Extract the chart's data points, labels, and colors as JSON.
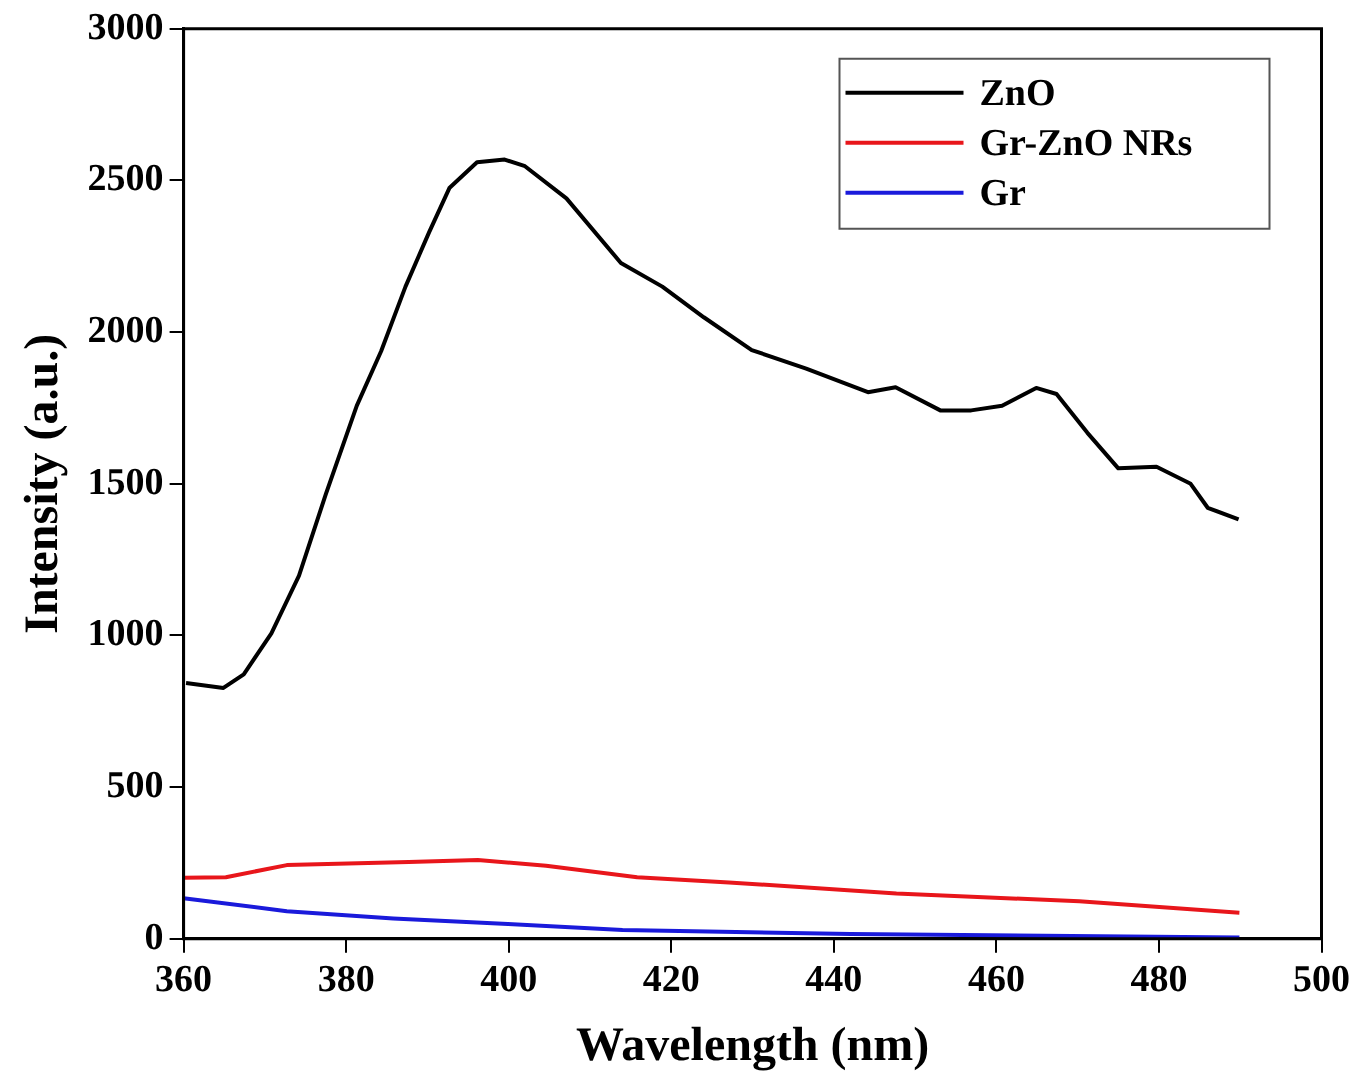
{
  "chart_data": {
    "type": "line",
    "xlabel": "Wavelength (nm)",
    "ylabel": "Intensity (a.u.)",
    "xlim": [
      360,
      500
    ],
    "xticks": [
      360,
      380,
      400,
      420,
      440,
      460,
      480,
      500
    ],
    "ylim": [
      0,
      3000
    ],
    "yticks": [
      0,
      500,
      1000,
      1500,
      2000,
      2500,
      3000
    ],
    "grid": false,
    "legend": "top right",
    "marker": "none",
    "line_style": "solid",
    "series": [
      {
        "name": "ZnO",
        "color": "#000000",
        "x": [
          360.3,
          364.9,
          367.4,
          370.8,
          374.2,
          377.5,
          381.3,
          384.3,
          387.3,
          390.2,
          392.7,
          396.1,
          399.5,
          402,
          407.1,
          413.8,
          418.9,
          424,
          429.9,
          436.6,
          444.2,
          447.6,
          453.1,
          456.9,
          460.7,
          464.9,
          467.4,
          471.2,
          475,
          479.7,
          483.9,
          486,
          489.8
        ],
        "values": [
          843,
          827,
          872,
          1007,
          1197,
          1466,
          1757,
          1937,
          2150,
          2329,
          2475,
          2560,
          2569,
          2547,
          2441,
          2228,
          2150,
          2049,
          1941,
          1880,
          1802,
          1818,
          1742,
          1742,
          1757,
          1816,
          1796,
          1668,
          1551,
          1556,
          1500,
          1421,
          1383
        ]
      },
      {
        "name": "Gr-ZnO NRs",
        "color": "#e8161b",
        "x": [
          360,
          365.2,
          372.7,
          387.7,
          396.2,
          404.6,
          415.8,
          427.1,
          447.7,
          470.2,
          489.9
        ],
        "values": [
          201,
          203,
          243,
          253,
          260,
          241,
          203,
          186,
          149,
          124,
          86
        ]
      },
      {
        "name": "Gr",
        "color": "#1a1adb",
        "x": [
          360,
          372.7,
          385.8,
          399.9,
          414,
          442.1,
          489.9
        ],
        "values": [
          134,
          91,
          67,
          49,
          29,
          16,
          4
        ]
      }
    ]
  }
}
